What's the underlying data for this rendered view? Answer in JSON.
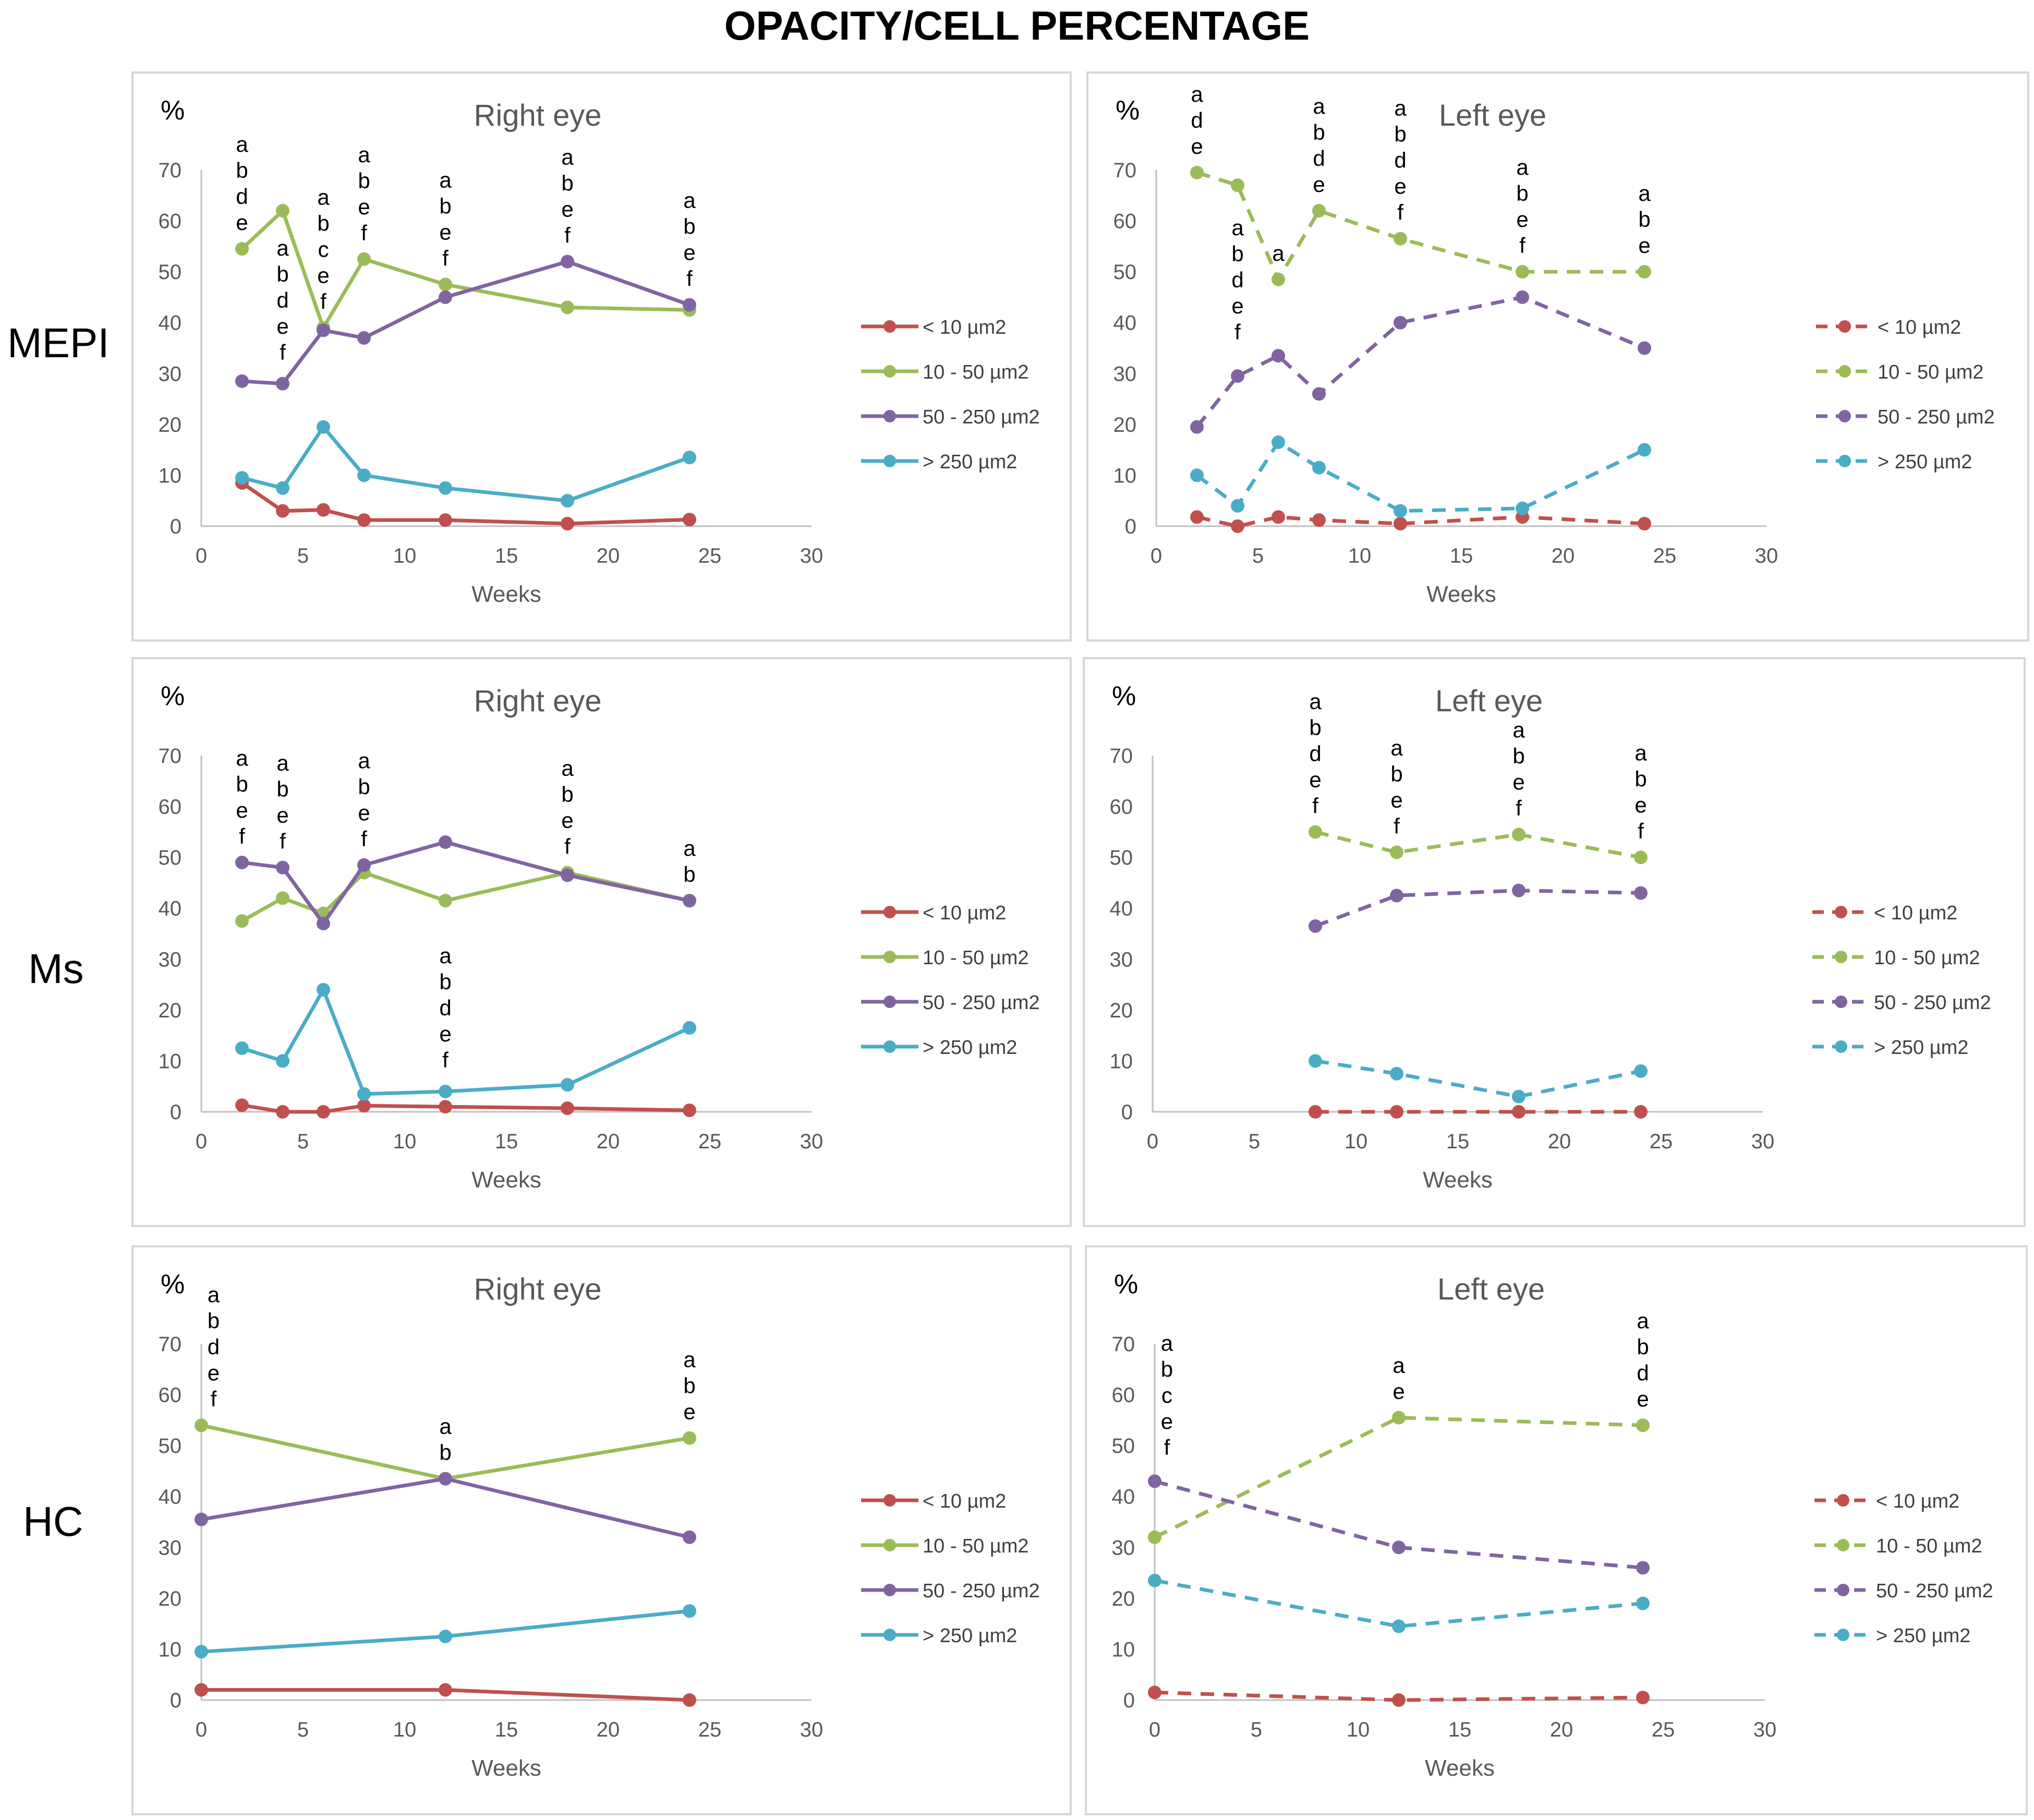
{
  "title": "OPACITY/CELL PERCENTAGE",
  "row_labels": [
    "MEPI",
    "Ms",
    "HC"
  ],
  "colors": {
    "lt10": "#c0504d",
    "10to50": "#9bbb59",
    "50to250": "#8064a2",
    "gt250": "#4bacc6",
    "axis": "#bfbfbf",
    "text": "#595959"
  },
  "chart_data": [
    {
      "type": "line",
      "row": "MEPI",
      "title": "Right eye",
      "ylabel": "%",
      "xlabel": "Weeks",
      "xlim": [
        0,
        30
      ],
      "ylim": [
        0,
        70
      ],
      "xticks": [
        0,
        5,
        10,
        15,
        20,
        25,
        30
      ],
      "yticks": [
        0,
        10,
        20,
        30,
        40,
        50,
        60,
        70
      ],
      "dashed": false,
      "series": [
        {
          "name": "< 10 µm2",
          "color": "#c0504d",
          "x": [
            2,
            4,
            6,
            8,
            12,
            18,
            24
          ],
          "y": [
            8.5,
            3,
            3.2,
            1.2,
            1.2,
            0.5,
            1.3
          ]
        },
        {
          "name": "10 - 50 µm2",
          "color": "#9bbb59",
          "x": [
            2,
            4,
            6,
            8,
            12,
            18,
            24
          ],
          "y": [
            54.5,
            62,
            39,
            52.5,
            47.5,
            43,
            42.5
          ]
        },
        {
          "name": "50 - 250 µm2",
          "color": "#8064a2",
          "x": [
            2,
            4,
            6,
            8,
            12,
            18,
            24
          ],
          "y": [
            28.5,
            28,
            38.5,
            37,
            45,
            52,
            43.5
          ]
        },
        {
          "name": "> 250 µm2",
          "color": "#4bacc6",
          "x": [
            2,
            4,
            6,
            8,
            12,
            18,
            24
          ],
          "y": [
            9.5,
            7.5,
            19.5,
            10,
            7.5,
            5,
            13.5
          ]
        }
      ],
      "annotations": [
        {
          "x": 2,
          "y": 54.5,
          "text": "abde"
        },
        {
          "x": 4,
          "y": 29,
          "text": "abdef"
        },
        {
          "x": 6,
          "y": 39,
          "text": "abcef"
        },
        {
          "x": 8,
          "y": 52.5,
          "text": "abef"
        },
        {
          "x": 12,
          "y": 47.5,
          "text": "abef"
        },
        {
          "x": 18,
          "y": 52,
          "text": "abef"
        },
        {
          "x": 24,
          "y": 43.5,
          "text": "abef"
        }
      ]
    },
    {
      "type": "line",
      "row": "MEPI",
      "title": "Left eye",
      "ylabel": "%",
      "xlabel": "Weeks",
      "xlim": [
        0,
        30
      ],
      "ylim": [
        0,
        70
      ],
      "xticks": [
        0,
        5,
        10,
        15,
        20,
        25,
        30
      ],
      "yticks": [
        0,
        10,
        20,
        30,
        40,
        50,
        60,
        70
      ],
      "dashed": true,
      "series": [
        {
          "name": "< 10 µm2",
          "color": "#c0504d",
          "x": [
            2,
            4,
            6,
            8,
            12,
            18,
            24
          ],
          "y": [
            1.8,
            0,
            1.8,
            1.2,
            0.5,
            1.8,
            0.5
          ]
        },
        {
          "name": "10 - 50 µm2",
          "color": "#9bbb59",
          "x": [
            2,
            4,
            6,
            8,
            12,
            18,
            24
          ],
          "y": [
            69.5,
            67,
            48.5,
            62,
            56.5,
            50,
            50
          ]
        },
        {
          "name": "50 - 250 µm2",
          "color": "#8064a2",
          "x": [
            2,
            4,
            6,
            8,
            12,
            18,
            24
          ],
          "y": [
            19.5,
            29.5,
            33.5,
            26,
            40,
            45,
            35
          ]
        },
        {
          "name": "> 250 µm2",
          "color": "#4bacc6",
          "x": [
            2,
            4,
            6,
            8,
            12,
            18,
            24
          ],
          "y": [
            10,
            4,
            16.5,
            11.5,
            3,
            3.5,
            15
          ]
        }
      ],
      "annotations": [
        {
          "x": 2,
          "y": 69.5,
          "text": "ade"
        },
        {
          "x": 4,
          "y": 33,
          "text": "abdef"
        },
        {
          "x": 6,
          "y": 48.5,
          "text": "a"
        },
        {
          "x": 8,
          "y": 62,
          "text": "abde"
        },
        {
          "x": 12,
          "y": 56.5,
          "text": "abdef"
        },
        {
          "x": 18,
          "y": 50,
          "text": "abef"
        },
        {
          "x": 24,
          "y": 50,
          "text": "abe"
        }
      ]
    },
    {
      "type": "line",
      "row": "Ms",
      "title": "Right eye",
      "ylabel": "%",
      "xlabel": "Weeks",
      "xlim": [
        0,
        30
      ],
      "ylim": [
        0,
        70
      ],
      "xticks": [
        0,
        5,
        10,
        15,
        20,
        25,
        30
      ],
      "yticks": [
        0,
        10,
        20,
        30,
        40,
        50,
        60,
        70
      ],
      "dashed": false,
      "series": [
        {
          "name": "< 10 µm2",
          "color": "#c0504d",
          "x": [
            2,
            4,
            6,
            8,
            12,
            18,
            24
          ],
          "y": [
            1.3,
            0,
            0,
            1.2,
            1,
            0.7,
            0.3
          ]
        },
        {
          "name": "10 - 50 µm2",
          "color": "#9bbb59",
          "x": [
            2,
            4,
            6,
            8,
            12,
            18,
            24
          ],
          "y": [
            37.5,
            42,
            39,
            47,
            41.5,
            47,
            41.5
          ]
        },
        {
          "name": "50 - 250 µm2",
          "color": "#8064a2",
          "x": [
            2,
            4,
            6,
            8,
            12,
            18,
            24
          ],
          "y": [
            49,
            48,
            37,
            48.5,
            53,
            46.5,
            41.5
          ]
        },
        {
          "name": "> 250 µm2",
          "color": "#4bacc6",
          "x": [
            2,
            4,
            6,
            8,
            12,
            18,
            24
          ],
          "y": [
            12.5,
            10,
            24,
            3.5,
            4,
            5.3,
            16.5
          ]
        }
      ],
      "annotations": [
        {
          "x": 2,
          "y": 49,
          "text": "abef"
        },
        {
          "x": 4,
          "y": 48,
          "text": "abef"
        },
        {
          "x": 8,
          "y": 48.5,
          "text": "abef"
        },
        {
          "x": 12,
          "y": 5,
          "text": "abdef"
        },
        {
          "x": 18,
          "y": 47,
          "text": "abef"
        },
        {
          "x": 24,
          "y": 41.5,
          "text": "ab"
        }
      ]
    },
    {
      "type": "line",
      "row": "Ms",
      "title": "Left eye",
      "ylabel": "%",
      "xlabel": "Weeks",
      "xlim": [
        0,
        30
      ],
      "ylim": [
        0,
        70
      ],
      "xticks": [
        0,
        5,
        10,
        15,
        20,
        25,
        30
      ],
      "yticks": [
        0,
        10,
        20,
        30,
        40,
        50,
        60,
        70
      ],
      "dashed": true,
      "series": [
        {
          "name": "< 10 µm2",
          "color": "#c0504d",
          "x": [
            8,
            12,
            18,
            24
          ],
          "y": [
            0,
            0,
            0,
            0
          ]
        },
        {
          "name": "10 - 50 µm2",
          "color": "#9bbb59",
          "x": [
            8,
            12,
            18,
            24
          ],
          "y": [
            55,
            51,
            54.5,
            50
          ]
        },
        {
          "name": "50 - 250 µm2",
          "color": "#8064a2",
          "x": [
            8,
            12,
            18,
            24
          ],
          "y": [
            36.5,
            42.5,
            43.5,
            43
          ]
        },
        {
          "name": "> 250 µm2",
          "color": "#4bacc6",
          "x": [
            8,
            12,
            18,
            24
          ],
          "y": [
            10,
            7.5,
            3,
            8
          ]
        }
      ],
      "annotations": [
        {
          "x": 8,
          "y": 55,
          "text": "abdef"
        },
        {
          "x": 12,
          "y": 51,
          "text": "abef"
        },
        {
          "x": 18,
          "y": 54.5,
          "text": "abef"
        },
        {
          "x": 24,
          "y": 50,
          "text": "abef"
        }
      ]
    },
    {
      "type": "line",
      "row": "HC",
      "title": "Right eye",
      "ylabel": "%",
      "xlabel": "Weeks",
      "xlim": [
        0,
        30
      ],
      "ylim": [
        0,
        70
      ],
      "xticks": [
        0,
        5,
        10,
        15,
        20,
        25,
        30
      ],
      "yticks": [
        0,
        10,
        20,
        30,
        40,
        50,
        60,
        70
      ],
      "dashed": false,
      "series": [
        {
          "name": "< 10 µm2",
          "color": "#c0504d",
          "x": [
            0,
            12,
            24
          ],
          "y": [
            2,
            2,
            0
          ]
        },
        {
          "name": "10 - 50 µm2",
          "color": "#9bbb59",
          "x": [
            0,
            12,
            24
          ],
          "y": [
            54,
            43.5,
            51.5
          ]
        },
        {
          "name": "50 - 250 µm2",
          "color": "#8064a2",
          "x": [
            0,
            12,
            24
          ],
          "y": [
            35.5,
            43.5,
            32
          ]
        },
        {
          "name": "> 250 µm2",
          "color": "#4bacc6",
          "x": [
            0,
            12,
            24
          ],
          "y": [
            9.5,
            12.5,
            17.5
          ]
        }
      ],
      "annotations": [
        {
          "x": 0.6,
          "y": 54,
          "text": "abdef"
        },
        {
          "x": 12,
          "y": 43.5,
          "text": "ab"
        },
        {
          "x": 24,
          "y": 51.5,
          "text": "abe"
        }
      ]
    },
    {
      "type": "line",
      "row": "HC",
      "title": "Left eye",
      "ylabel": "%",
      "xlabel": "Weeks",
      "xlim": [
        0,
        30
      ],
      "ylim": [
        0,
        70
      ],
      "xticks": [
        0,
        5,
        10,
        15,
        20,
        25,
        30
      ],
      "yticks": [
        0,
        10,
        20,
        30,
        40,
        50,
        60,
        70
      ],
      "dashed": true,
      "series": [
        {
          "name": "< 10 µm2",
          "color": "#c0504d",
          "x": [
            0,
            12,
            24
          ],
          "y": [
            1.5,
            0,
            0.5
          ]
        },
        {
          "name": "10 - 50 µm2",
          "color": "#9bbb59",
          "x": [
            0,
            12,
            24
          ],
          "y": [
            32,
            55.5,
            54
          ]
        },
        {
          "name": "50 - 250 µm2",
          "color": "#8064a2",
          "x": [
            0,
            12,
            24
          ],
          "y": [
            43,
            30,
            26
          ]
        },
        {
          "name": "> 250 µm2",
          "color": "#4bacc6",
          "x": [
            0,
            12,
            24
          ],
          "y": [
            23.5,
            14.5,
            19
          ]
        }
      ],
      "annotations": [
        {
          "x": 0.6,
          "y": 44.5,
          "text": "abcef"
        },
        {
          "x": 12,
          "y": 55.5,
          "text": "ae"
        },
        {
          "x": 24,
          "y": 54,
          "text": "abde"
        }
      ]
    }
  ]
}
